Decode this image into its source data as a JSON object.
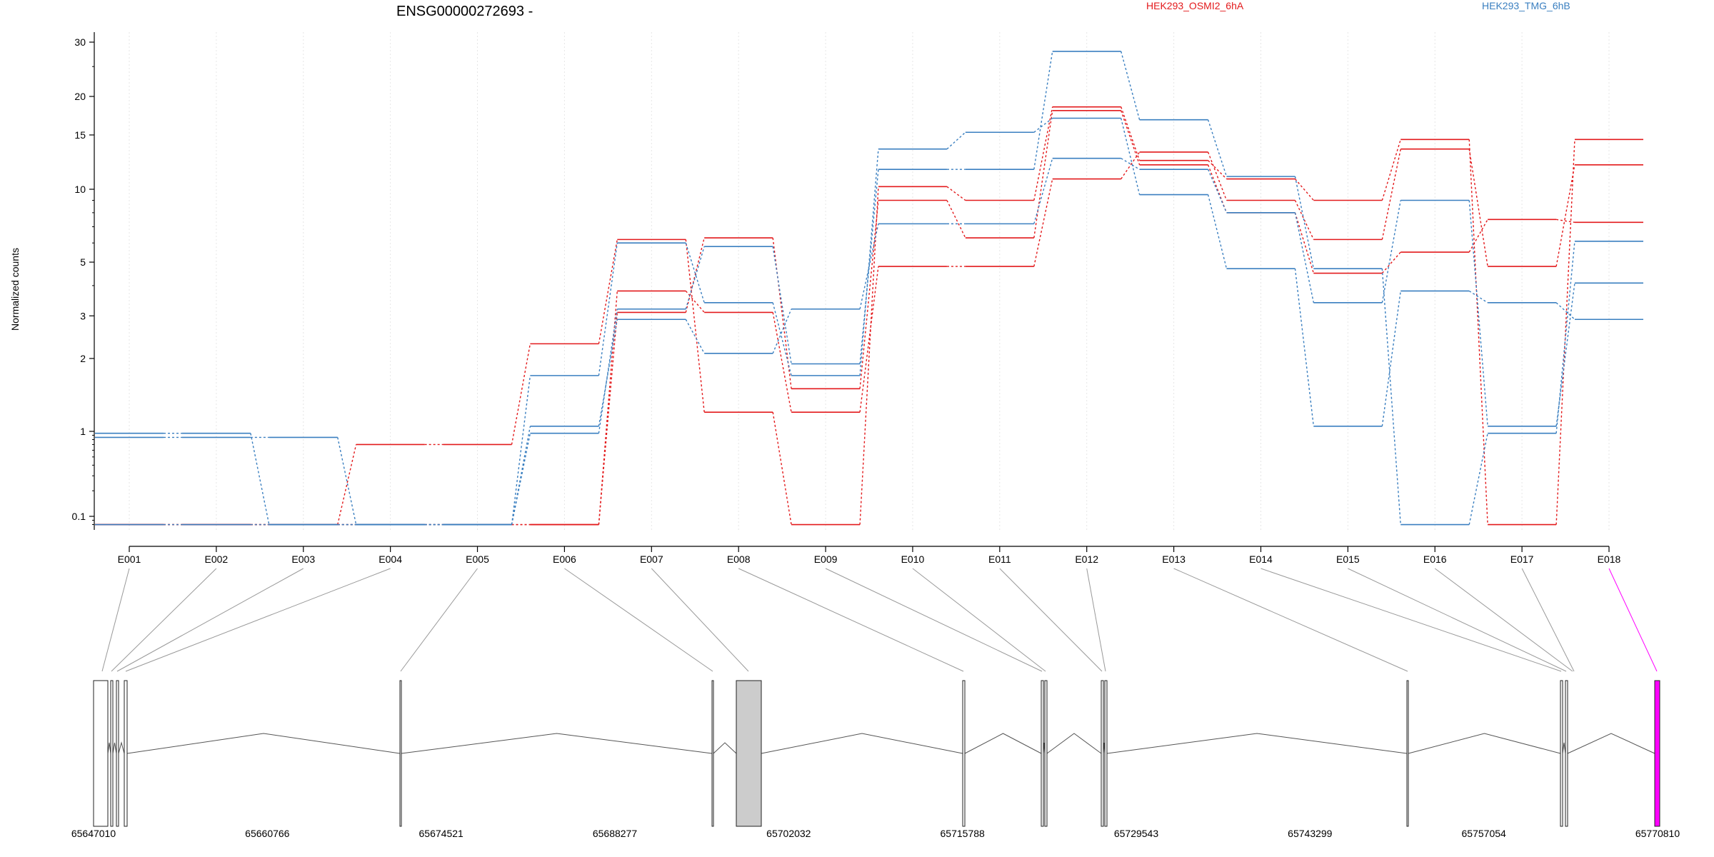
{
  "chart_data": {
    "type": "line",
    "title": "ENSG00000272693 -",
    "ylabel": "Normalized counts",
    "xlabel": "",
    "y_scale": "log",
    "ylim": [
      0.08,
      33
    ],
    "y_ticks": [
      {
        "value": 0.1,
        "label": "0.1"
      },
      {
        "value": 1,
        "label": "1"
      },
      {
        "value": 2,
        "label": "2"
      },
      {
        "value": 3,
        "label": "3"
      },
      {
        "value": 5,
        "label": "5"
      },
      {
        "value": 10,
        "label": "10"
      },
      {
        "value": 15,
        "label": "15"
      },
      {
        "value": 20,
        "label": "20"
      },
      {
        "value": 30,
        "label": "30"
      }
    ],
    "categories": [
      "E001",
      "E002",
      "E003",
      "E004",
      "E005",
      "E006",
      "E007",
      "E008",
      "E009",
      "E010",
      "E011",
      "E012",
      "E013",
      "E014",
      "E015",
      "E016",
      "E017",
      "E018"
    ],
    "legend": [
      {
        "label": "HEK293_OSMI2_6hA",
        "color": "#e31a1c"
      },
      {
        "label": "HEK293_TMG_6hB",
        "color": "#3a7fc0"
      }
    ],
    "legend_position": "top",
    "grid": "vertical dotted",
    "series": [
      {
        "group": "HEK293_OSMI2_6hA",
        "color": "#e31a1c",
        "values": [
          0.08,
          0.08,
          0.08,
          0.7,
          0.7,
          2.3,
          6.2,
          1.2,
          0.08,
          10.2,
          9.0,
          18.5,
          12.4,
          10.8,
          9.0,
          14.5,
          0.08,
          14.5
        ]
      },
      {
        "group": "HEK293_OSMI2_6hA",
        "color": "#e31a1c",
        "values": [
          0.08,
          0.08,
          0.08,
          0.08,
          0.08,
          0.08,
          3.8,
          3.1,
          1.2,
          4.8,
          4.8,
          10.8,
          13.2,
          9.0,
          6.2,
          13.5,
          4.8,
          12.0
        ]
      },
      {
        "group": "HEK293_OSMI2_6hA",
        "color": "#e31a1c",
        "values": [
          0.08,
          0.08,
          0.08,
          0.08,
          0.08,
          0.08,
          3.1,
          6.3,
          1.5,
          9.0,
          6.3,
          18.0,
          12.0,
          8.0,
          4.5,
          5.5,
          7.5,
          7.3
        ]
      },
      {
        "group": "HEK293_TMG_6hB",
        "color": "#3a7fc0",
        "values": [
          0.95,
          0.95,
          0.08,
          0.08,
          0.08,
          0.95,
          3.2,
          5.8,
          1.9,
          11.6,
          11.6,
          28.0,
          16.8,
          11.0,
          4.7,
          0.08,
          0.95,
          6.1
        ]
      },
      {
        "group": "HEK293_TMG_6hB",
        "color": "#3a7fc0",
        "values": [
          0.85,
          0.85,
          0.85,
          0.08,
          0.08,
          1.7,
          6.0,
          3.4,
          1.7,
          13.5,
          15.3,
          17.0,
          9.5,
          4.7,
          1.05,
          3.8,
          3.4,
          2.9
        ]
      },
      {
        "group": "HEK293_TMG_6hB",
        "color": "#3a7fc0",
        "values": [
          0.08,
          0.08,
          0.08,
          0.08,
          0.08,
          1.05,
          2.9,
          2.1,
          3.2,
          7.2,
          7.2,
          12.6,
          11.6,
          8.0,
          3.4,
          9.0,
          1.05,
          4.1
        ]
      }
    ],
    "gene_model": {
      "coordinate_labels": [
        "65647010",
        "65660766",
        "65674521",
        "65688277",
        "65702032",
        "65715788",
        "65729543",
        "65743299",
        "65757054",
        "65770810"
      ],
      "highlighted_exon": "E018",
      "highlight_color": "#ff00ff",
      "shaded_region_color": "#cccccc"
    }
  }
}
